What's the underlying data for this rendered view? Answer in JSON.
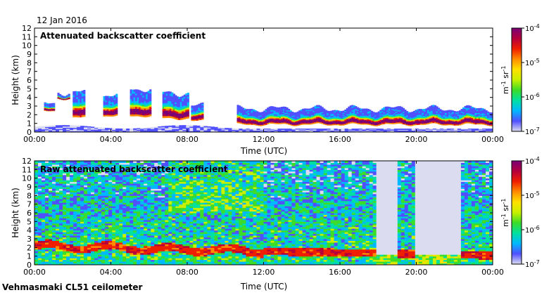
{
  "date": "12 Jan 2016",
  "footer": "Vehmasmaki CL51 ceilometer",
  "colorbar": {
    "unit_main": "m",
    "unit_exp1": "-1",
    "unit_mid": " sr",
    "unit_exp2": "-1",
    "stops": [
      "#dcdcf0",
      "#5050ff",
      "#00b8ff",
      "#00e0a0",
      "#3cdc28",
      "#c8f000",
      "#ffe000",
      "#ff8c00",
      "#f01e00",
      "#b4003c",
      "#7a0078"
    ]
  },
  "chart_data": [
    {
      "type": "heatmap",
      "title": "Attenuated backscatter coefficient",
      "xlabel": "Time (UTC)",
      "ylabel": "Height (km)",
      "x_ticks": [
        "00:00",
        "04:00",
        "08:00",
        "12:00",
        "16:00",
        "20:00",
        "00:00"
      ],
      "xlim_hours": [
        0,
        24
      ],
      "y_ticks": [
        "0",
        "1",
        "2",
        "3",
        "4",
        "5",
        "6",
        "7",
        "8",
        "9",
        "10",
        "11",
        "12"
      ],
      "ylim_km": [
        0,
        12
      ],
      "colorbar_scale": "log",
      "colorbar_ticks": [
        {
          "base": "10",
          "exp": "-7"
        },
        {
          "base": "10",
          "exp": "-6"
        },
        {
          "base": "10",
          "exp": "-5"
        },
        {
          "base": "10",
          "exp": "-4"
        }
      ],
      "cloud_layers_km": [
        {
          "start_h": 0.5,
          "end_h": 1.0,
          "bottom": 2.4,
          "top": 3.2
        },
        {
          "start_h": 1.2,
          "end_h": 1.8,
          "bottom": 3.9,
          "top": 4.6
        },
        {
          "start_h": 2.0,
          "end_h": 2.6,
          "bottom": 1.7,
          "top": 4.6
        },
        {
          "start_h": 3.6,
          "end_h": 4.3,
          "bottom": 1.9,
          "top": 4.3
        },
        {
          "start_h": 5.0,
          "end_h": 6.1,
          "bottom": 1.9,
          "top": 5.0
        },
        {
          "start_h": 6.7,
          "end_h": 8.0,
          "bottom": 1.6,
          "top": 4.5
        },
        {
          "start_h": 8.2,
          "end_h": 8.8,
          "bottom": 1.3,
          "top": 3.0
        },
        {
          "start_h": 10.6,
          "end_h": 24.0,
          "bottom": 0.9,
          "top": 2.7
        }
      ]
    },
    {
      "type": "heatmap",
      "title": "Raw attenuated backscatter coefficient",
      "xlabel": "Time (UTC)",
      "ylabel": "Height (km)",
      "x_ticks": [
        "00:00",
        "04:00",
        "08:00",
        "12:00",
        "16:00",
        "20:00",
        "00:00"
      ],
      "xlim_hours": [
        0,
        24
      ],
      "y_ticks": [
        "0",
        "1",
        "2",
        "3",
        "4",
        "5",
        "6",
        "7",
        "8",
        "9",
        "10",
        "11",
        "12"
      ],
      "ylim_km": [
        0,
        12
      ],
      "colorbar_scale": "log",
      "colorbar_ticks": [
        {
          "base": "10",
          "exp": "-7"
        },
        {
          "base": "10",
          "exp": "-6"
        },
        {
          "base": "10",
          "exp": "-5"
        },
        {
          "base": "10",
          "exp": "-4"
        }
      ],
      "no_signal_bands_h": [
        [
          17.9,
          19.0
        ],
        [
          20.0,
          22.4
        ]
      ]
    }
  ]
}
